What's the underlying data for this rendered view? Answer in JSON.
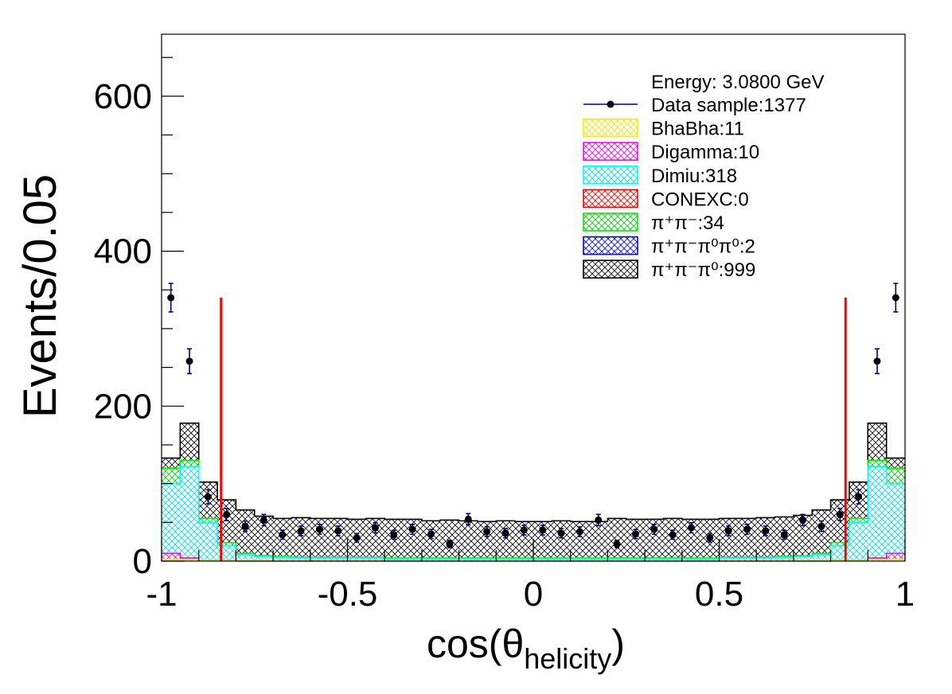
{
  "chart_data": {
    "type": "histogram",
    "xlabel_main": "cos(θ",
    "xlabel_sub": "helicity",
    "xlabel_close": ")",
    "ylabel": "Events/0.05",
    "xlim": [
      -1,
      1
    ],
    "ylim": [
      0,
      680
    ],
    "x_ticks": [
      {
        "v": -1,
        "label": "-1"
      },
      {
        "v": -0.5,
        "label": "-0.5"
      },
      {
        "v": 0,
        "label": "0"
      },
      {
        "v": 0.5,
        "label": "0.5"
      },
      {
        "v": 1,
        "label": "1"
      }
    ],
    "y_ticks": [
      {
        "v": 0,
        "label": "0"
      },
      {
        "v": 200,
        "label": "200"
      },
      {
        "v": 400,
        "label": "400"
      },
      {
        "v": 600,
        "label": "600"
      }
    ],
    "bin_width": 0.05,
    "cut_lines": [
      {
        "x": -0.84,
        "ymax": 340,
        "color": "#ff0000"
      },
      {
        "x": 0.84,
        "ymax": 340,
        "color": "#ff0000"
      }
    ],
    "stack_series": [
      {
        "name": "π+π-π0",
        "color": "#000000",
        "values": [
          133,
          178,
          102,
          79,
          66,
          58,
          55,
          56,
          55,
          55,
          54,
          55,
          54,
          54,
          52,
          53,
          52,
          51,
          52,
          51,
          51,
          52,
          51,
          51,
          55,
          54,
          54,
          55,
          54,
          54,
          55,
          55,
          56,
          57,
          59,
          66,
          79,
          102,
          178,
          133
        ]
      },
      {
        "name": "π+π-",
        "color": "#00ee00",
        "values": [
          120,
          130,
          55,
          24,
          10,
          7,
          6,
          5,
          5,
          5,
          5,
          5,
          4,
          4,
          4,
          4,
          4,
          4,
          4,
          4,
          4,
          4,
          4,
          4,
          4,
          4,
          4,
          4,
          4,
          4,
          5,
          5,
          5,
          6,
          7,
          10,
          24,
          55,
          130,
          120
        ]
      },
      {
        "name": "Dimiu",
        "color": "#00ffff",
        "values": [
          100,
          122,
          50,
          20,
          8,
          6,
          5,
          4,
          4,
          4,
          4,
          4,
          3,
          3,
          3,
          3,
          3,
          3,
          3,
          3,
          3,
          3,
          3,
          3,
          3,
          3,
          3,
          3,
          3,
          3,
          4,
          4,
          4,
          5,
          6,
          8,
          20,
          50,
          122,
          100
        ]
      },
      {
        "name": "Digamma",
        "color": "#ff00ff",
        "values": [
          10,
          4,
          1,
          1,
          0,
          0,
          0,
          0,
          0,
          0,
          0,
          0,
          0,
          0,
          0,
          0,
          0,
          0,
          0,
          0,
          0,
          0,
          0,
          0,
          0,
          0,
          0,
          0,
          0,
          0,
          0,
          0,
          0,
          0,
          0,
          0,
          1,
          1,
          4,
          10
        ]
      },
      {
        "name": "BhaBha",
        "color": "#ffff00",
        "values": [
          2,
          2,
          1,
          1,
          1,
          1,
          0,
          0,
          0,
          0,
          0,
          0,
          0,
          0,
          0,
          0,
          0,
          0,
          0,
          0,
          0,
          0,
          0,
          0,
          0,
          0,
          0,
          0,
          0,
          0,
          0,
          0,
          0,
          0,
          1,
          1,
          1,
          1,
          2,
          2
        ]
      }
    ],
    "data_points": {
      "color": "#000080",
      "x": [
        -0.975,
        -0.925,
        -0.875,
        -0.825,
        -0.775,
        -0.725,
        -0.675,
        -0.625,
        -0.575,
        -0.525,
        -0.475,
        -0.425,
        -0.375,
        -0.325,
        -0.275,
        -0.225,
        -0.175,
        -0.125,
        -0.075,
        -0.025,
        0.025,
        0.075,
        0.125,
        0.175,
        0.225,
        0.275,
        0.325,
        0.375,
        0.425,
        0.475,
        0.525,
        0.575,
        0.625,
        0.675,
        0.725,
        0.775,
        0.825,
        0.875,
        0.925,
        0.975
      ],
      "y": [
        340,
        258,
        83,
        60,
        45,
        53,
        34,
        39,
        41,
        39,
        30,
        43,
        34,
        41,
        35,
        22,
        54,
        38,
        36,
        40,
        40,
        36,
        38,
        53,
        22,
        35,
        41,
        34,
        43,
        30,
        39,
        41,
        39,
        34,
        53,
        45,
        60,
        83,
        258,
        340
      ],
      "err": [
        18.4,
        16,
        9.1,
        7.7,
        6.7,
        7.3,
        5.8,
        6.2,
        6.4,
        6.2,
        5.5,
        6.6,
        5.8,
        6.4,
        5.9,
        4.7,
        7.3,
        6.2,
        6,
        6.3,
        6.3,
        6,
        6.2,
        7.3,
        4.7,
        5.9,
        6.4,
        5.8,
        6.6,
        5.5,
        6.2,
        6.4,
        6.2,
        5.8,
        7.3,
        6.7,
        7.7,
        9.1,
        16,
        18.4
      ]
    },
    "legend": {
      "position": "top-right",
      "header": "Energy: 3.0800 GeV",
      "entries": [
        {
          "kind": "data",
          "label": "Data sample:1377",
          "color": "#000080"
        },
        {
          "kind": "box",
          "label": "BhaBha:11",
          "color": "#ffff00"
        },
        {
          "kind": "box",
          "label": "Digamma:10",
          "color": "#ff00ff"
        },
        {
          "kind": "box",
          "label": "Dimiu:318",
          "color": "#00ffff"
        },
        {
          "kind": "box",
          "label": "CONEXC:0",
          "color": "#ff0000"
        },
        {
          "kind": "box",
          "label": "π⁺π⁻:34",
          "color": "#00ee00"
        },
        {
          "kind": "box",
          "label": "π⁺π⁻π⁰π⁰:2",
          "color": "#0000ff"
        },
        {
          "kind": "box",
          "label": "π⁺π⁻π⁰:999",
          "color": "#000000"
        }
      ]
    }
  }
}
